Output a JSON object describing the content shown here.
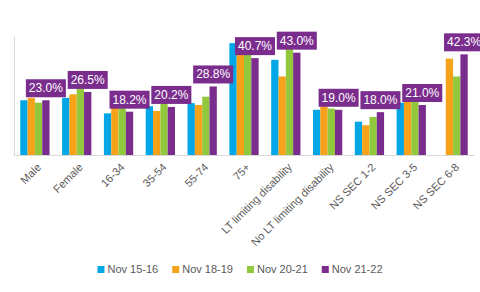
{
  "chart_data": {
    "type": "bar",
    "categories": [
      "Male",
      "Female",
      "16-34",
      "35-54",
      "55-74",
      "75+",
      "LT limiting disability",
      "No LT limiting disability",
      "NS SEC 1-2",
      "NS SEC 3-5",
      "NS SEC 6-8"
    ],
    "series": [
      {
        "name": "Nov 15-16",
        "color": "#00a6e6",
        "values": [
          23,
          24,
          17.5,
          20.5,
          21.8,
          47,
          40,
          19,
          14,
          22,
          null
        ]
      },
      {
        "name": "Nov 18-19",
        "color": "#f7a21b",
        "values": [
          24,
          25.5,
          22,
          18.5,
          21,
          42.5,
          33,
          20.5,
          12.5,
          24,
          40.5
        ]
      },
      {
        "name": "Nov 20-21",
        "color": "#92c83e",
        "values": [
          22,
          28,
          23.5,
          24,
          24.5,
          45.5,
          44.5,
          19.5,
          16,
          24.5,
          33
        ]
      },
      {
        "name": "Nov 21-22",
        "color": "#7b2d8e",
        "values": [
          23.0,
          26.5,
          18.2,
          20.2,
          28.8,
          40.7,
          43.0,
          19.0,
          18.0,
          21.0,
          42.3
        ],
        "data_labels": true,
        "value_labels": [
          "23.0%",
          "26.5%",
          "18.2%",
          "20.2%",
          "28.8%",
          "40.7%",
          "43.0%",
          "19.0%",
          "18.0%",
          "21.0%",
          "42.3%"
        ]
      }
    ],
    "ylim": [
      0,
      50
    ],
    "yticks": [],
    "tick_labels": "x",
    "grid": false,
    "legend": "bottom"
  }
}
